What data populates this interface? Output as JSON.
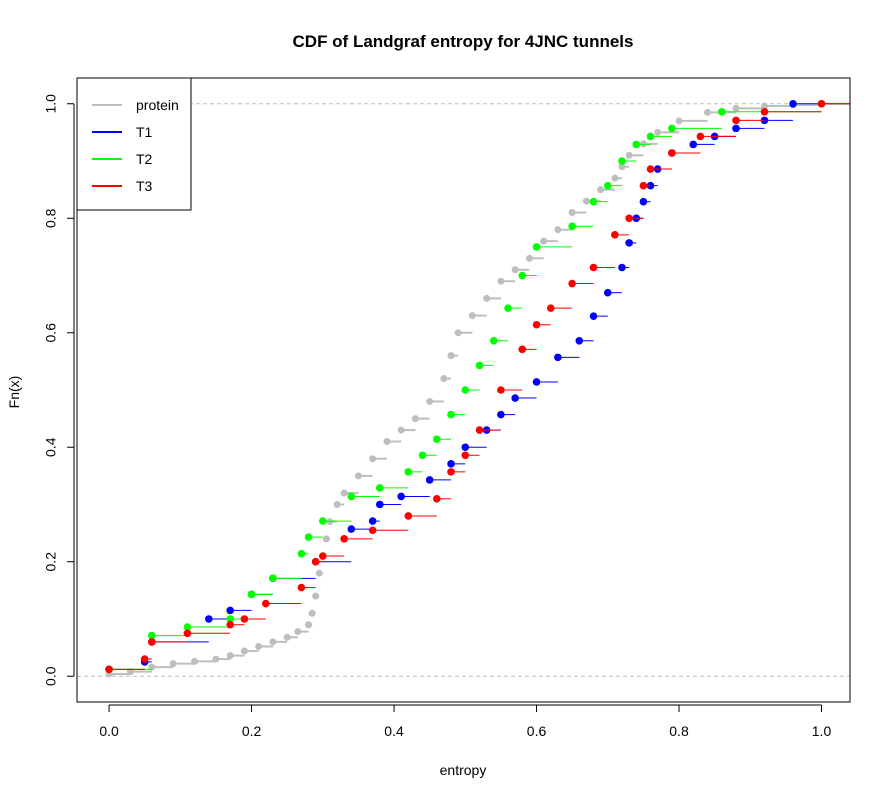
{
  "chart_data": {
    "type": "line",
    "title": "CDF of Landgraf entropy for 4JNC  tunnels",
    "xlabel": "entropy",
    "ylabel": "Fn(x)",
    "xlim": [
      -0.045,
      1.04
    ],
    "ylim": [
      -0.045,
      1.045
    ],
    "x_ticks": [
      "0.0",
      "0.2",
      "0.4",
      "0.6",
      "0.8",
      "1.0"
    ],
    "y_ticks": [
      "0.0",
      "0.2",
      "0.4",
      "0.6",
      "0.8",
      "1.0"
    ],
    "reference_lines_y": [
      0,
      1
    ],
    "legend_position": "top-left",
    "series": [
      {
        "name": "protein",
        "color": "#bebebe",
        "points": [
          [
            0.0,
            0.004
          ],
          [
            0.03,
            0.008
          ],
          [
            0.06,
            0.016
          ],
          [
            0.09,
            0.022
          ],
          [
            0.12,
            0.026
          ],
          [
            0.15,
            0.03
          ],
          [
            0.17,
            0.036
          ],
          [
            0.19,
            0.044
          ],
          [
            0.21,
            0.052
          ],
          [
            0.23,
            0.06
          ],
          [
            0.25,
            0.068
          ],
          [
            0.265,
            0.078
          ],
          [
            0.28,
            0.09
          ],
          [
            0.285,
            0.11
          ],
          [
            0.29,
            0.14
          ],
          [
            0.295,
            0.18
          ],
          [
            0.3,
            0.21
          ],
          [
            0.305,
            0.24
          ],
          [
            0.31,
            0.27
          ],
          [
            0.32,
            0.3
          ],
          [
            0.33,
            0.32
          ],
          [
            0.35,
            0.35
          ],
          [
            0.37,
            0.38
          ],
          [
            0.39,
            0.41
          ],
          [
            0.41,
            0.43
          ],
          [
            0.43,
            0.45
          ],
          [
            0.45,
            0.48
          ],
          [
            0.47,
            0.52
          ],
          [
            0.48,
            0.56
          ],
          [
            0.49,
            0.6
          ],
          [
            0.51,
            0.63
          ],
          [
            0.53,
            0.66
          ],
          [
            0.55,
            0.69
          ],
          [
            0.57,
            0.71
          ],
          [
            0.59,
            0.73
          ],
          [
            0.61,
            0.76
          ],
          [
            0.63,
            0.78
          ],
          [
            0.65,
            0.81
          ],
          [
            0.67,
            0.83
          ],
          [
            0.69,
            0.85
          ],
          [
            0.71,
            0.87
          ],
          [
            0.72,
            0.89
          ],
          [
            0.73,
            0.91
          ],
          [
            0.75,
            0.93
          ],
          [
            0.77,
            0.95
          ],
          [
            0.8,
            0.97
          ],
          [
            0.84,
            0.985
          ],
          [
            0.88,
            0.992
          ],
          [
            0.92,
            0.996
          ],
          [
            0.96,
            0.998
          ],
          [
            1.0,
            1.0
          ]
        ]
      },
      {
        "name": "T1",
        "color": "#0000ff",
        "points": [
          [
            0.0,
            0.012
          ],
          [
            0.05,
            0.025
          ],
          [
            0.06,
            0.06
          ],
          [
            0.14,
            0.1
          ],
          [
            0.17,
            0.115
          ],
          [
            0.2,
            0.143
          ],
          [
            0.23,
            0.171
          ],
          [
            0.29,
            0.2
          ],
          [
            0.34,
            0.257
          ],
          [
            0.37,
            0.271
          ],
          [
            0.38,
            0.3
          ],
          [
            0.41,
            0.314
          ],
          [
            0.45,
            0.343
          ],
          [
            0.48,
            0.371
          ],
          [
            0.5,
            0.4
          ],
          [
            0.53,
            0.43
          ],
          [
            0.55,
            0.457
          ],
          [
            0.57,
            0.486
          ],
          [
            0.6,
            0.514
          ],
          [
            0.63,
            0.557
          ],
          [
            0.66,
            0.586
          ],
          [
            0.68,
            0.629
          ],
          [
            0.7,
            0.67
          ],
          [
            0.72,
            0.714
          ],
          [
            0.73,
            0.757
          ],
          [
            0.74,
            0.8
          ],
          [
            0.75,
            0.829
          ],
          [
            0.76,
            0.857
          ],
          [
            0.77,
            0.886
          ],
          [
            0.79,
            0.914
          ],
          [
            0.82,
            0.929
          ],
          [
            0.85,
            0.943
          ],
          [
            0.88,
            0.957
          ],
          [
            0.92,
            0.971
          ],
          [
            0.96,
            1.0
          ]
        ]
      },
      {
        "name": "T2",
        "color": "#00ff00",
        "points": [
          [
            0.0,
            0.012
          ],
          [
            0.06,
            0.071
          ],
          [
            0.11,
            0.086
          ],
          [
            0.17,
            0.1
          ],
          [
            0.2,
            0.143
          ],
          [
            0.23,
            0.171
          ],
          [
            0.27,
            0.214
          ],
          [
            0.28,
            0.243
          ],
          [
            0.3,
            0.271
          ],
          [
            0.34,
            0.314
          ],
          [
            0.38,
            0.329
          ],
          [
            0.42,
            0.357
          ],
          [
            0.44,
            0.386
          ],
          [
            0.46,
            0.414
          ],
          [
            0.48,
            0.457
          ],
          [
            0.5,
            0.5
          ],
          [
            0.52,
            0.543
          ],
          [
            0.54,
            0.586
          ],
          [
            0.56,
            0.643
          ],
          [
            0.58,
            0.7
          ],
          [
            0.6,
            0.75
          ],
          [
            0.65,
            0.786
          ],
          [
            0.68,
            0.829
          ],
          [
            0.7,
            0.857
          ],
          [
            0.72,
            0.9
          ],
          [
            0.74,
            0.929
          ],
          [
            0.76,
            0.943
          ],
          [
            0.79,
            0.957
          ],
          [
            0.86,
            0.986
          ],
          [
            1.0,
            1.0
          ]
        ]
      },
      {
        "name": "T3",
        "color": "#ff0000",
        "points": [
          [
            0.0,
            0.012
          ],
          [
            0.05,
            0.03
          ],
          [
            0.06,
            0.06
          ],
          [
            0.11,
            0.075
          ],
          [
            0.17,
            0.09
          ],
          [
            0.19,
            0.1
          ],
          [
            0.22,
            0.127
          ],
          [
            0.27,
            0.155
          ],
          [
            0.29,
            0.2
          ],
          [
            0.3,
            0.21
          ],
          [
            0.33,
            0.24
          ],
          [
            0.37,
            0.255
          ],
          [
            0.42,
            0.28
          ],
          [
            0.46,
            0.31
          ],
          [
            0.48,
            0.357
          ],
          [
            0.5,
            0.386
          ],
          [
            0.52,
            0.43
          ],
          [
            0.55,
            0.5
          ],
          [
            0.58,
            0.571
          ],
          [
            0.6,
            0.614
          ],
          [
            0.62,
            0.643
          ],
          [
            0.65,
            0.686
          ],
          [
            0.68,
            0.714
          ],
          [
            0.71,
            0.771
          ],
          [
            0.73,
            0.8
          ],
          [
            0.75,
            0.857
          ],
          [
            0.76,
            0.886
          ],
          [
            0.79,
            0.914
          ],
          [
            0.83,
            0.943
          ],
          [
            0.88,
            0.971
          ],
          [
            0.92,
            0.986
          ],
          [
            1.0,
            1.0
          ]
        ]
      }
    ]
  }
}
